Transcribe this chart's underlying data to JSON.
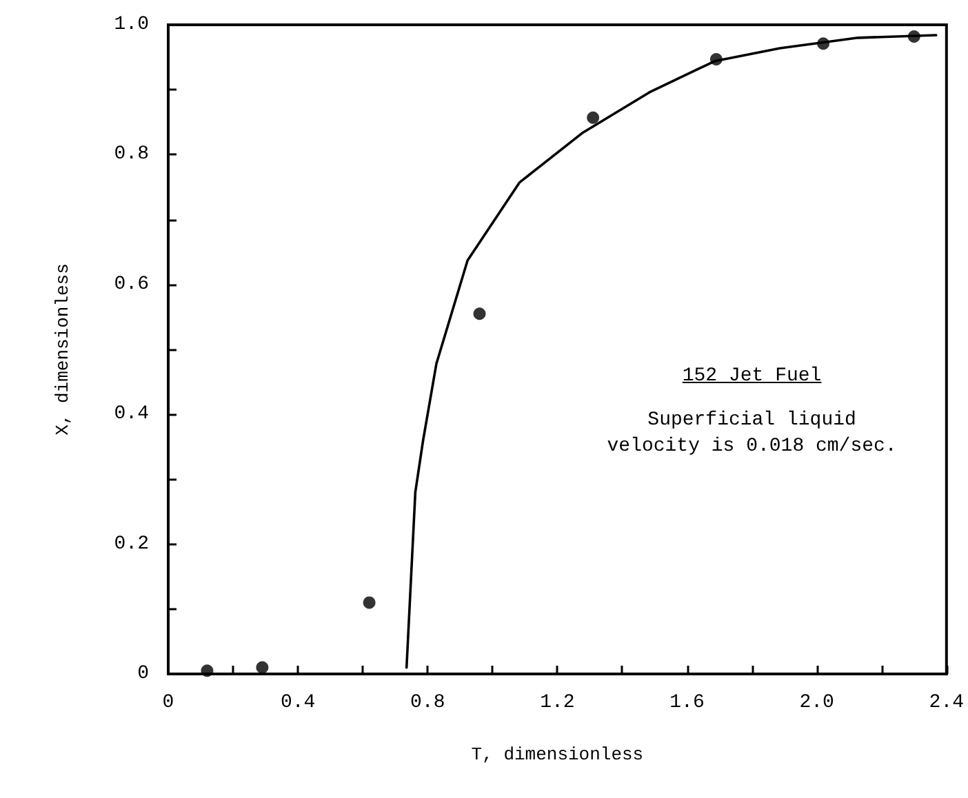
{
  "chart_data": {
    "type": "scatter",
    "xlabel": "T, dimensionless",
    "ylabel": "X, dimensionless",
    "annotations": [
      "152 Jet Fuel",
      "Superficial liquid\nvelocity is 0.018 cm/sec."
    ],
    "xlim": [
      0,
      2.4
    ],
    "ylim": [
      0,
      1.0
    ],
    "xticks": [
      0,
      {
        "value": 0.2,
        "label": null
      },
      0.4,
      {
        "value": 0.6,
        "label": null
      },
      0.8,
      {
        "value": 1.0,
        "label": null
      },
      1.2,
      {
        "value": 1.4,
        "label": null
      },
      1.6,
      {
        "value": 1.8,
        "label": null
      },
      {
        "value": 2.0,
        "label": "2.0"
      },
      {
        "value": 2.2,
        "label": null
      },
      2.4
    ],
    "yticks": [
      0,
      {
        "value": 0.1,
        "label": null
      },
      0.2,
      {
        "value": 0.3,
        "label": null
      },
      0.4,
      {
        "value": 0.5,
        "label": null
      },
      0.6,
      {
        "value": 0.7,
        "label": null
      },
      0.8,
      {
        "value": 0.9,
        "label": null
      },
      {
        "value": 1.0,
        "label": "1.0"
      }
    ],
    "grid": false,
    "series": [
      {
        "color": "#000000",
        "marker": "circle",
        "x": [
          0.12,
          0.29,
          0.62,
          0.96,
          1.31,
          1.69,
          2.02,
          2.3
        ],
        "values": [
          0.005,
          0.01,
          0.11,
          0.555,
          0.857,
          0.947,
          0.971,
          0.982
        ]
      },
      {
        "type": "line",
        "color": "#000000",
        "marker": "none",
        "line_style": "solid",
        "x": [
          0.735,
          0.746,
          0.762,
          0.786,
          0.827,
          0.923,
          1.083,
          1.276,
          1.484,
          1.685,
          1.886,
          2.127,
          2.368
        ],
        "values": [
          0.01,
          0.12,
          0.28,
          0.36,
          0.478,
          0.637,
          0.757,
          0.833,
          0.896,
          0.944,
          0.964,
          0.98,
          0.984
        ]
      }
    ]
  }
}
